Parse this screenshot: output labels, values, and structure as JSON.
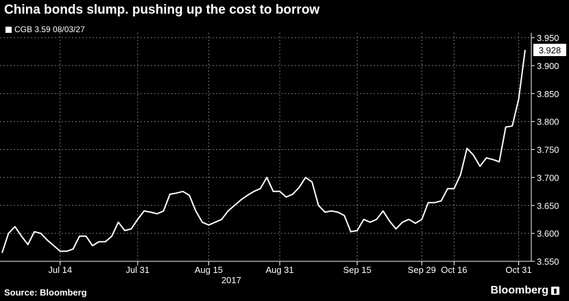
{
  "title": "China bonds slump. pushing up the cost to borrow",
  "source": "Source: Bloomberg",
  "brand": "Bloomberg",
  "chart_data": {
    "type": "line",
    "title": "China bonds slump. pushing up the cost to borrow",
    "series": [
      {
        "name": "CGB 3.59 08/03/27",
        "color": "#ffffff",
        "last_value_label": "3.928",
        "values": [
          3.565,
          3.6,
          3.612,
          3.595,
          3.58,
          3.603,
          3.6,
          3.588,
          3.578,
          3.568,
          3.568,
          3.572,
          3.595,
          3.595,
          3.578,
          3.585,
          3.585,
          3.595,
          3.62,
          3.605,
          3.608,
          3.625,
          3.64,
          3.638,
          3.635,
          3.64,
          3.67,
          3.672,
          3.675,
          3.668,
          3.64,
          3.62,
          3.615,
          3.62,
          3.625,
          3.64,
          3.65,
          3.66,
          3.668,
          3.675,
          3.68,
          3.7,
          3.675,
          3.675,
          3.665,
          3.67,
          3.682,
          3.7,
          3.692,
          3.65,
          3.638,
          3.64,
          3.638,
          3.632,
          3.603,
          3.605,
          3.625,
          3.62,
          3.625,
          3.64,
          3.622,
          3.608,
          3.62,
          3.625,
          3.618,
          3.625,
          3.655,
          3.655,
          3.658,
          3.68,
          3.68,
          3.705,
          3.752,
          3.74,
          3.72,
          3.735,
          3.732,
          3.728,
          3.79,
          3.792,
          3.84,
          3.928
        ]
      }
    ],
    "x_tick_labels": [
      "Jul 14",
      "Jul 31",
      "Aug 15",
      "Aug 31",
      "Sep 15",
      "Sep 29",
      "Oct 16",
      "Oct 31"
    ],
    "x_tick_index": [
      9,
      21,
      32,
      43,
      55,
      65,
      70,
      80
    ],
    "x_year_label": "2017",
    "y_tick_labels": [
      "3.550",
      "3.600",
      "3.650",
      "3.700",
      "3.750",
      "3.800",
      "3.850",
      "3.900",
      "3.950"
    ],
    "ylim": [
      3.55,
      3.95
    ],
    "grid": "dashed",
    "legend": "top-left"
  }
}
